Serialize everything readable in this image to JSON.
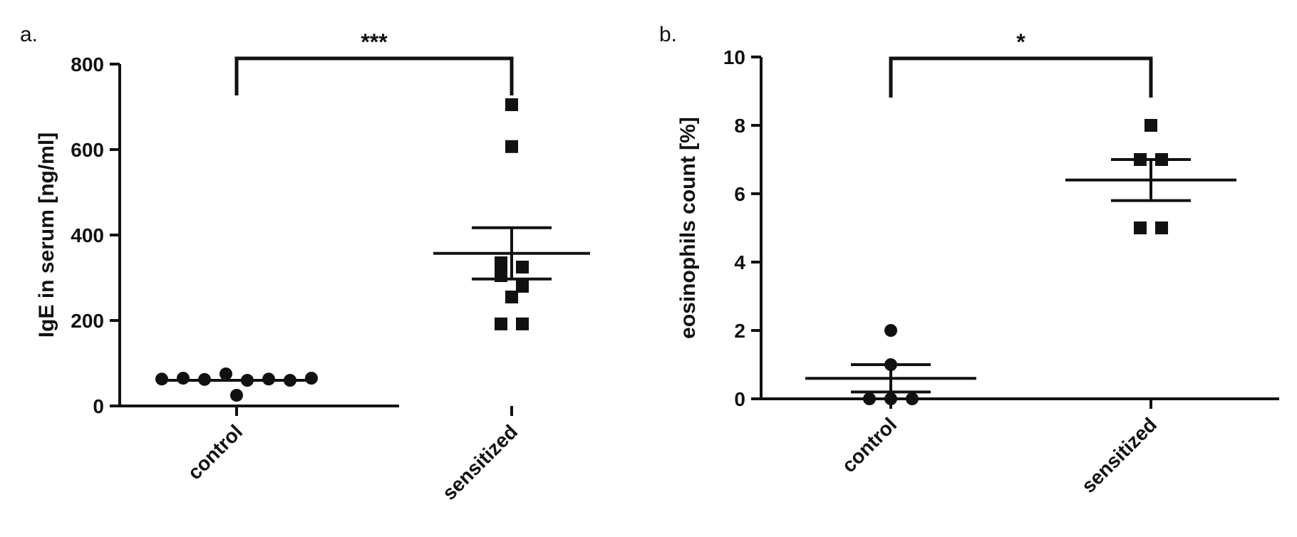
{
  "chart_data": [
    {
      "type": "scatter",
      "panel_label": "a.",
      "title": "",
      "xlabel": "",
      "ylabel": "IgE in serum [ng/ml]",
      "ylim": [
        0,
        800
      ],
      "yticks": [
        0,
        200,
        400,
        600,
        800
      ],
      "categories": [
        "control",
        "sensitized"
      ],
      "series": [
        {
          "category": "control",
          "marker": "circle",
          "values": [
            63,
            65,
            62,
            75,
            60,
            63,
            60,
            65,
            25
          ],
          "mean": 60,
          "sem_upper": 60,
          "sem_lower": 60
        },
        {
          "category": "sensitized",
          "marker": "square",
          "values": [
            705,
            607,
            335,
            305,
            325,
            280,
            255,
            192,
            192
          ],
          "mean": 357,
          "sem_upper": 417,
          "sem_lower": 297
        }
      ],
      "significance": {
        "from": "control",
        "to": "sensitized",
        "label": "***"
      }
    },
    {
      "type": "scatter",
      "panel_label": "b.",
      "title": "",
      "xlabel": "",
      "ylabel": "eosinophils count [%]",
      "ylim": [
        0,
        10
      ],
      "yticks": [
        0,
        2,
        4,
        6,
        8,
        10
      ],
      "categories": [
        "control",
        "sensitized"
      ],
      "series": [
        {
          "category": "control",
          "marker": "circle",
          "values": [
            2,
            1,
            0,
            0,
            0
          ],
          "mean": 0.6,
          "sem_upper": 1.0,
          "sem_lower": 0.2
        },
        {
          "category": "sensitized",
          "marker": "square",
          "values": [
            8,
            7,
            7,
            5,
            5
          ],
          "mean": 6.4,
          "sem_upper": 7.0,
          "sem_lower": 5.8
        }
      ],
      "significance": {
        "from": "control",
        "to": "sensitized",
        "label": "*"
      }
    }
  ]
}
